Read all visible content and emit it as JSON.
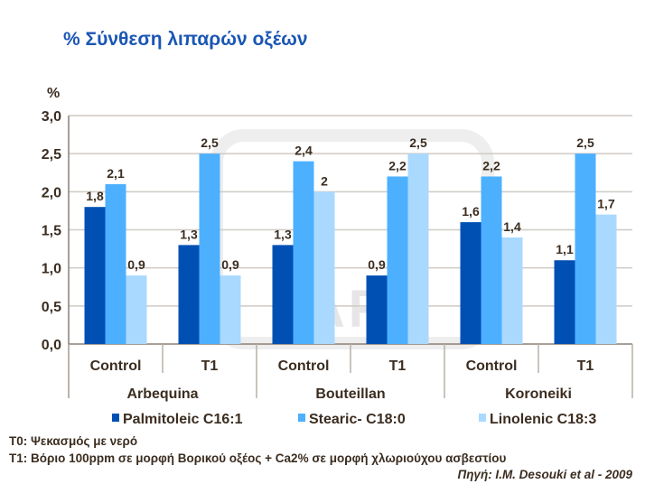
{
  "chart_data": {
    "type": "bar",
    "title": "% Σύνθεση λιπαρών οξέων",
    "ylabel": "%",
    "ylim": [
      0,
      3.0
    ],
    "yticks": [
      "0,0",
      "0,5",
      "1,0",
      "1,5",
      "2,0",
      "2,5",
      "3,0"
    ],
    "grid": true,
    "legend": "bottom",
    "categories": [
      "Control",
      "T1",
      "Control",
      "T1",
      "Control",
      "T1"
    ],
    "groups": [
      "Arbequina",
      "Bouteillan",
      "Koroneiki"
    ],
    "series": [
      {
        "name": "Palmitoleic C16:1",
        "color": "#0050b4",
        "values": [
          1.8,
          1.3,
          1.3,
          0.9,
          1.6,
          1.1
        ],
        "labels": [
          "1,8",
          "1,3",
          "1,3",
          "0,9",
          "1,6",
          "1,1"
        ]
      },
      {
        "name": "Stearic- C18:0",
        "color": "#4cb0ff",
        "values": [
          2.1,
          2.5,
          2.4,
          2.2,
          2.2,
          2.5
        ],
        "labels": [
          "2,1",
          "2,5",
          "2,4",
          "2,2",
          "2,2",
          "2,5"
        ]
      },
      {
        "name": "Linolenic C18:3",
        "color": "#a9d9ff",
        "values": [
          0.9,
          0.9,
          2,
          2.5,
          1.4,
          1.7
        ],
        "labels": [
          "0,9",
          "0,9",
          "2",
          "2,5",
          "1,4",
          "1,7"
        ]
      }
    ]
  },
  "watermark": "YARA",
  "notes": {
    "t0": "T0: Ψεκασμός με νερό",
    "t1": "T1: Βόριο 100ppm σε μορφή Βορικού οξέος + Ca2% σε μορφή χλωριούχου ασβεστίου",
    "source": "Πηγή: I.M. Desouki et al - 2009"
  }
}
